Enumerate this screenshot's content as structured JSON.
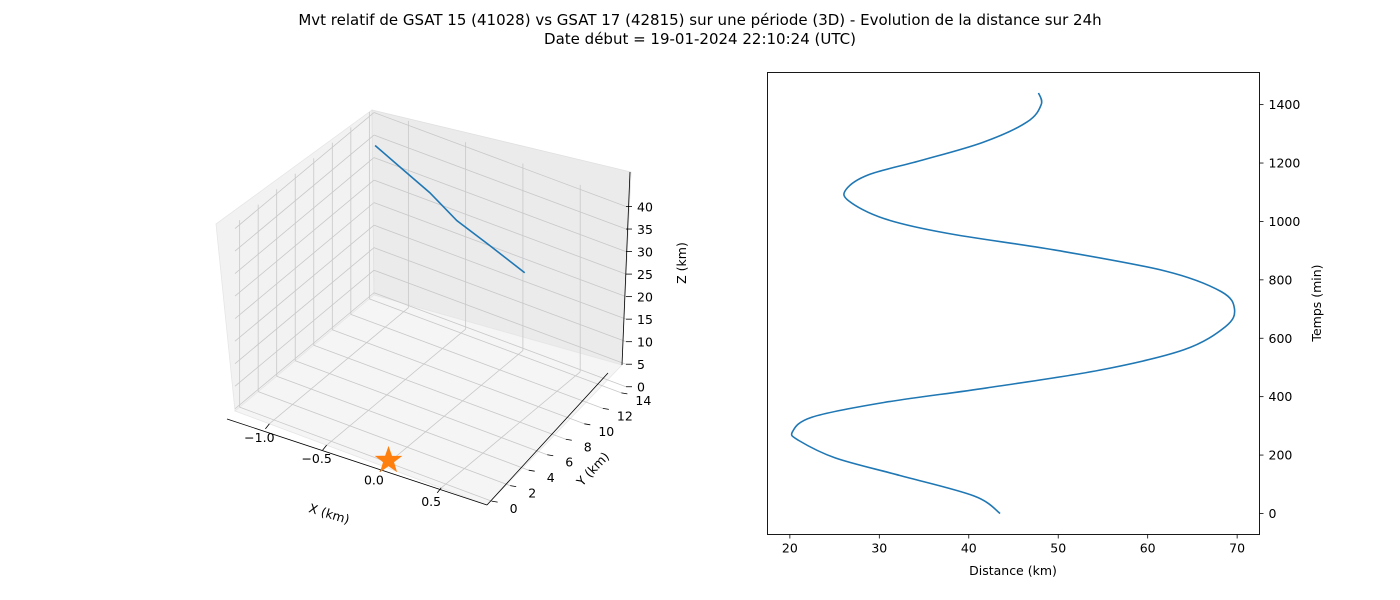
{
  "title": "Mvt relatif de GSAT 15 (41028) vs GSAT 17 (42815) sur une période (3D) - Evolution de la distance sur 24h",
  "subtitle": "Date début = 19-01-2024 22:10:24 (UTC)",
  "chart_data": [
    {
      "type": "line3d",
      "xlabel": "X (km)",
      "ylabel": "Y (km)",
      "zlabel": "Z (km)",
      "x_ticks": [
        "−1.0",
        "−0.5",
        "0.0",
        "0.5"
      ],
      "y_ticks": [
        "0",
        "2",
        "4",
        "6",
        "8",
        "10",
        "12",
        "14"
      ],
      "z_ticks": [
        "0",
        "5",
        "10",
        "15",
        "20",
        "25",
        "30",
        "35",
        "40"
      ],
      "xlim": [
        -1.3,
        0.9
      ],
      "ylim": [
        -0.5,
        14.5
      ],
      "zlim": [
        -0.5,
        41
      ],
      "trajectory": {
        "color": "#1f77b4",
        "points": [
          {
            "x": -1.25,
            "y": 14.0,
            "z": 34.0
          },
          {
            "x": -0.85,
            "y": 12.0,
            "z": 36.0
          },
          {
            "x": -0.45,
            "y": 10.0,
            "z": 38.0
          },
          {
            "x": -0.05,
            "y": 8.0,
            "z": 39.0
          },
          {
            "x": 0.35,
            "y": 6.5,
            "z": 40.0
          },
          {
            "x": 0.8,
            "y": 4.8,
            "z": 41.0
          }
        ]
      },
      "marker": {
        "symbol": "star",
        "color": "#ff7f0e",
        "x": 0.0,
        "y": 0.0,
        "z": 0.0
      }
    },
    {
      "type": "line",
      "xlabel": "Distance (km)",
      "ylabel": "Temps (min)",
      "xlim": [
        17.5,
        72.5
      ],
      "ylim": [
        -72,
        1510
      ],
      "x_ticks": [
        20,
        30,
        40,
        50,
        60,
        70
      ],
      "y_ticks": [
        0,
        200,
        400,
        600,
        800,
        1000,
        1200,
        1400
      ],
      "ytick_side": "right",
      "color": "#1f77b4",
      "series": [
        {
          "points": [
            {
              "distance": 43.5,
              "temps": 0
            },
            {
              "distance": 40.6,
              "temps": 60
            },
            {
              "distance": 32.3,
              "temps": 130
            },
            {
              "distance": 25.1,
              "temps": 190
            },
            {
              "distance": 21.0,
              "temps": 250
            },
            {
              "distance": 20.3,
              "temps": 280
            },
            {
              "distance": 22.5,
              "temps": 330
            },
            {
              "distance": 30.5,
              "temps": 380
            },
            {
              "distance": 42.0,
              "temps": 430
            },
            {
              "distance": 54.5,
              "temps": 490
            },
            {
              "distance": 64.0,
              "temps": 560
            },
            {
              "distance": 68.7,
              "temps": 640
            },
            {
              "distance": 69.7,
              "temps": 700
            },
            {
              "distance": 68.2,
              "temps": 760
            },
            {
              "distance": 62.0,
              "temps": 830
            },
            {
              "distance": 50.0,
              "temps": 900
            },
            {
              "distance": 37.5,
              "temps": 960
            },
            {
              "distance": 30.5,
              "temps": 1010
            },
            {
              "distance": 26.6,
              "temps": 1070
            },
            {
              "distance": 26.3,
              "temps": 1110
            },
            {
              "distance": 28.8,
              "temps": 1160
            },
            {
              "distance": 34.8,
              "temps": 1210
            },
            {
              "distance": 41.5,
              "temps": 1270
            },
            {
              "distance": 46.5,
              "temps": 1340
            },
            {
              "distance": 48.1,
              "temps": 1400
            },
            {
              "distance": 47.8,
              "temps": 1440
            }
          ]
        }
      ]
    }
  ]
}
